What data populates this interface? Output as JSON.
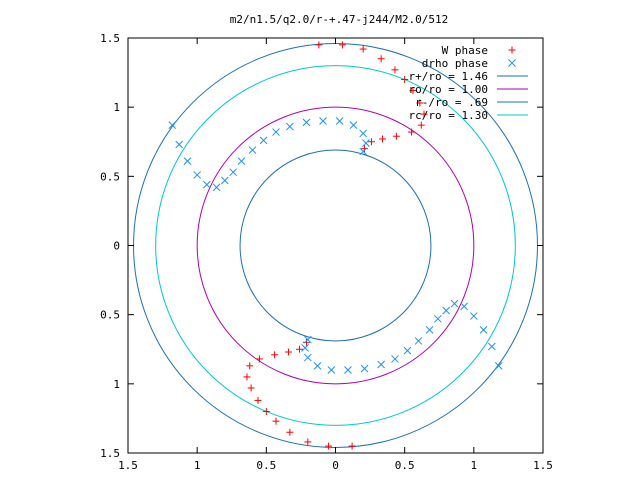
{
  "chart_data": {
    "type": "scatter",
    "title": "m2/n1.5/q2.0/r-+.47-j244/M2.0/512",
    "xlim": [
      -1.5,
      1.5
    ],
    "ylim": [
      -1.5,
      1.5
    ],
    "x_tick_values": [
      -1.5,
      -1,
      -0.5,
      0,
      0.5,
      1,
      1.5
    ],
    "x_tick_labels": [
      "1.5",
      "1",
      "0.5",
      "0",
      "0.5",
      "1",
      "1.5"
    ],
    "y_tick_values": [
      1.5,
      1,
      0.5,
      0,
      -0.5,
      -1,
      -1.5
    ],
    "y_tick_labels": [
      "1.5",
      "1",
      "0.5",
      "0",
      "0.5",
      "1",
      "1.5"
    ],
    "grid": false,
    "legend_position": "top-right",
    "series": [
      {
        "name": "W phase",
        "kind": "points",
        "marker": "+",
        "color": "#ff0000",
        "points": [
          [
            -0.12,
            1.45
          ],
          [
            0.05,
            1.45
          ],
          [
            0.2,
            1.42
          ],
          [
            0.33,
            1.35
          ],
          [
            0.43,
            1.27
          ],
          [
            0.5,
            1.2
          ],
          [
            0.56,
            1.12
          ],
          [
            0.61,
            1.03
          ],
          [
            0.64,
            0.95
          ],
          [
            0.62,
            0.87
          ],
          [
            0.55,
            0.82
          ],
          [
            0.44,
            0.79
          ],
          [
            0.34,
            0.77
          ],
          [
            0.26,
            0.75
          ],
          [
            0.21,
            0.7
          ],
          [
            0.12,
            -1.45
          ],
          [
            -0.05,
            -1.45
          ],
          [
            -0.2,
            -1.42
          ],
          [
            -0.33,
            -1.35
          ],
          [
            -0.43,
            -1.27
          ],
          [
            -0.5,
            -1.2
          ],
          [
            -0.56,
            -1.12
          ],
          [
            -0.61,
            -1.03
          ],
          [
            -0.64,
            -0.95
          ],
          [
            -0.62,
            -0.87
          ],
          [
            -0.55,
            -0.82
          ],
          [
            -0.44,
            -0.79
          ],
          [
            -0.34,
            -0.77
          ],
          [
            -0.26,
            -0.75
          ],
          [
            -0.21,
            -0.7
          ]
        ]
      },
      {
        "name": "drho phase",
        "kind": "points",
        "marker": "x",
        "color": "#1e90ff",
        "points": [
          [
            -1.18,
            0.87
          ],
          [
            -1.13,
            0.73
          ],
          [
            -1.07,
            0.61
          ],
          [
            -1.0,
            0.51
          ],
          [
            -0.93,
            0.44
          ],
          [
            -0.86,
            0.42
          ],
          [
            -0.8,
            0.47
          ],
          [
            -0.74,
            0.53
          ],
          [
            -0.68,
            0.61
          ],
          [
            -0.6,
            0.69
          ],
          [
            -0.52,
            0.76
          ],
          [
            -0.43,
            0.82
          ],
          [
            -0.33,
            0.86
          ],
          [
            -0.21,
            0.89
          ],
          [
            -0.09,
            0.9
          ],
          [
            0.03,
            0.9
          ],
          [
            0.13,
            0.87
          ],
          [
            0.2,
            0.81
          ],
          [
            0.22,
            0.74
          ],
          [
            0.2,
            0.68
          ],
          [
            1.18,
            -0.87
          ],
          [
            1.13,
            -0.73
          ],
          [
            1.07,
            -0.61
          ],
          [
            1.0,
            -0.51
          ],
          [
            0.93,
            -0.44
          ],
          [
            0.86,
            -0.42
          ],
          [
            0.8,
            -0.47
          ],
          [
            0.74,
            -0.53
          ],
          [
            0.68,
            -0.61
          ],
          [
            0.6,
            -0.69
          ],
          [
            0.52,
            -0.76
          ],
          [
            0.43,
            -0.82
          ],
          [
            0.33,
            -0.86
          ],
          [
            0.21,
            -0.89
          ],
          [
            0.09,
            -0.9
          ],
          [
            -0.03,
            -0.9
          ],
          [
            -0.13,
            -0.87
          ],
          [
            -0.2,
            -0.81
          ],
          [
            -0.22,
            -0.74
          ],
          [
            -0.2,
            -0.68
          ]
        ]
      },
      {
        "name": "r+/ro = 1.46",
        "kind": "circle",
        "radius": 1.46,
        "color": "#1f6fb2"
      },
      {
        "name": "ro/ro = 1.00",
        "kind": "circle",
        "radius": 1.0,
        "color": "#b000b0"
      },
      {
        "name": "r-/ro = .69",
        "kind": "circle",
        "radius": 0.69,
        "color": "#1f6fb2"
      },
      {
        "name": "rc/ro = 1.30",
        "kind": "circle",
        "radius": 1.3,
        "color": "#00c8c8"
      }
    ]
  }
}
